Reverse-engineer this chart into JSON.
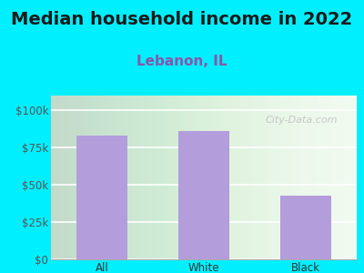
{
  "title": "Median household income in 2022",
  "subtitle": "Lebanon, IL",
  "categories": [
    "All",
    "White",
    "Black"
  ],
  "values": [
    83000,
    86000,
    43000
  ],
  "bar_color": "#b39ddb",
  "background_outer": "#00efff",
  "yticks": [
    0,
    25000,
    50000,
    75000,
    100000
  ],
  "ytick_labels": [
    "$0",
    "$25k",
    "$50k",
    "$75k",
    "$100k"
  ],
  "ylim": [
    0,
    110000
  ],
  "title_fontsize": 14,
  "subtitle_fontsize": 11,
  "tick_fontsize": 8.5,
  "watermark": "City-Data.com",
  "title_color": "#1a1a1a",
  "subtitle_color": "#8855aa",
  "tick_color": "#555555",
  "xlabel_color": "#333333",
  "grid_color": "#dddddd",
  "spine_color": "#aaaaaa"
}
